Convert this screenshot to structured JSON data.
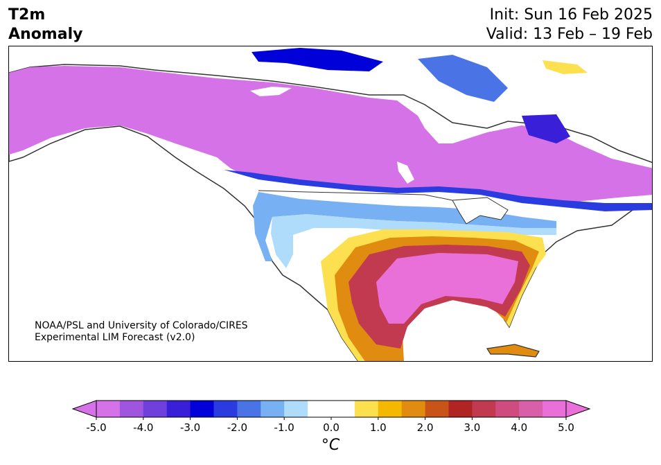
{
  "header": {
    "title_line1": "T2m",
    "title_line2": "Anomaly",
    "init_label": "Init: Sun 16 Feb 2025",
    "valid_label": "Valid: 13 Feb – 19 Feb"
  },
  "credit": {
    "line1": "NOAA/PSL and University of Colorado/CIRES",
    "line2": "Experimental LIM Forecast (v2.0)"
  },
  "colorbar": {
    "unit_label": "°C",
    "ticks": [
      "-5.0",
      "-4.0",
      "-3.0",
      "-2.0",
      "-1.0",
      "0.0",
      "1.0",
      "2.0",
      "3.0",
      "4.0",
      "5.0"
    ],
    "colors": [
      "#d572e8",
      "#a055e0",
      "#7040dc",
      "#3a1fd8",
      "#0000d8",
      "#2a3ce0",
      "#4a73e6",
      "#78b0f4",
      "#b0dcfc",
      "#ffffff",
      "#ffffff",
      "#fde050",
      "#f5b800",
      "#e08c10",
      "#c85418",
      "#b02424",
      "#c23a50",
      "#cf4c7e",
      "#d860a8",
      "#e870d8"
    ],
    "under_color": "#d572e8",
    "over_color": "#e870d8"
  }
}
